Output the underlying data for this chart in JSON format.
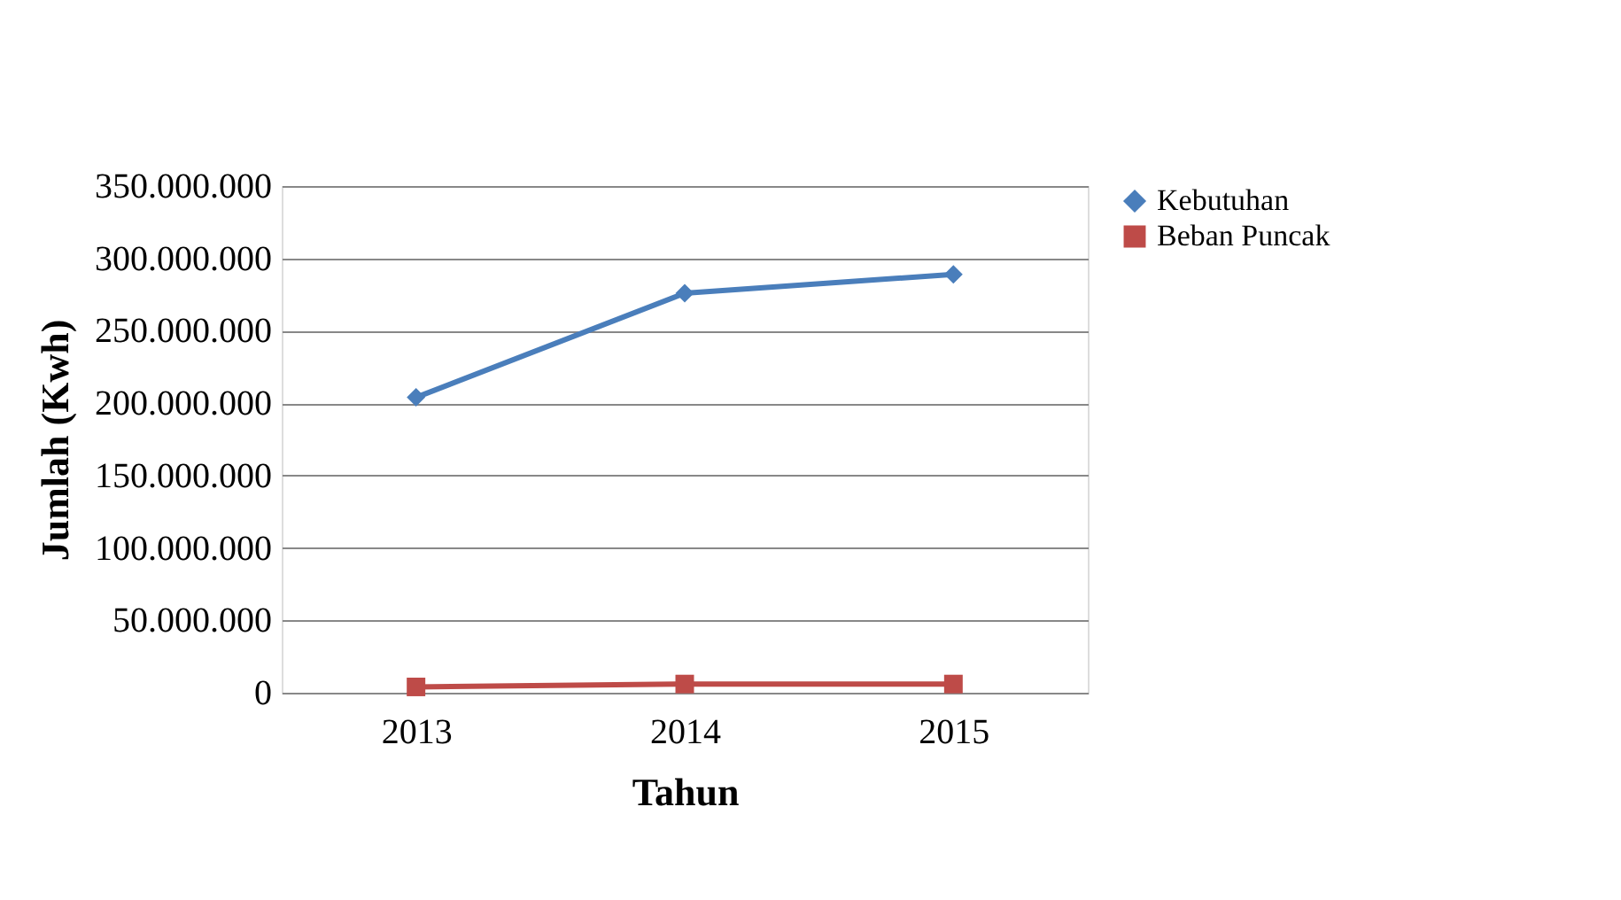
{
  "chart_data": {
    "type": "line",
    "xlabel": "Tahun",
    "ylabel": "Jumlah (Kwh)",
    "categories": [
      "2013",
      "2014",
      "2015"
    ],
    "series": [
      {
        "name": "Kebutuhan",
        "color": "#4a7ebb",
        "marker": "diamond",
        "values": [
          204000000,
          276000000,
          289000000
        ]
      },
      {
        "name": "Beban Puncak",
        "color": "#be4b48",
        "marker": "square",
        "values": [
          4000000,
          6000000,
          6000000
        ]
      }
    ],
    "ylim": [
      0,
      350000000
    ],
    "yticks": [
      {
        "value": 0,
        "label": "0"
      },
      {
        "value": 50000000,
        "label": "50.000.000"
      },
      {
        "value": 100000000,
        "label": "100.000.000"
      },
      {
        "value": 150000000,
        "label": "150.000.000"
      },
      {
        "value": 200000000,
        "label": "200.000.000"
      },
      {
        "value": 250000000,
        "label": "250.000.000"
      },
      {
        "value": 300000000,
        "label": "300.000.000"
      },
      {
        "value": 350000000,
        "label": "350.000.000"
      }
    ],
    "grid": "y",
    "legend": "right",
    "line_style": "solid"
  }
}
